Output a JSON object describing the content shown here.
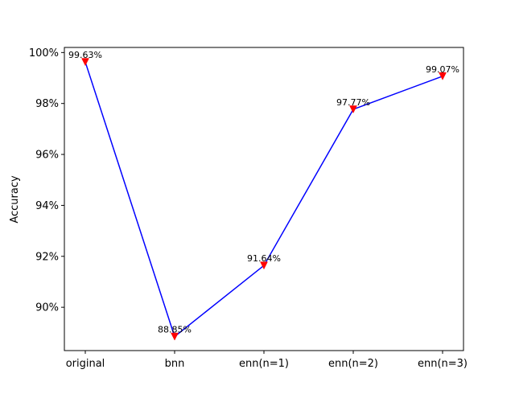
{
  "chart_data": {
    "type": "line",
    "title": "",
    "xlabel": "",
    "ylabel": "Accuracy",
    "categories": [
      "original",
      "bnn",
      "enn(n=1)",
      "enn(n=2)",
      "enn(n=3)"
    ],
    "series": [
      {
        "values": [
          99.63,
          88.85,
          91.64,
          97.77,
          99.07
        ],
        "labels": [
          "99.63%",
          "88.85%",
          "91.64%",
          "97.77%",
          "99.07%"
        ],
        "line_color": "#0000ff",
        "marker": "triangle-down",
        "marker_color": "#ff0000"
      }
    ],
    "ylim": [
      88.3,
      100.2
    ],
    "yticks": [
      90,
      92,
      94,
      96,
      98,
      100
    ],
    "ytick_labels": [
      "90%",
      "92%",
      "94%",
      "96%",
      "98%",
      "100%"
    ],
    "grid": false,
    "legend": "none"
  }
}
